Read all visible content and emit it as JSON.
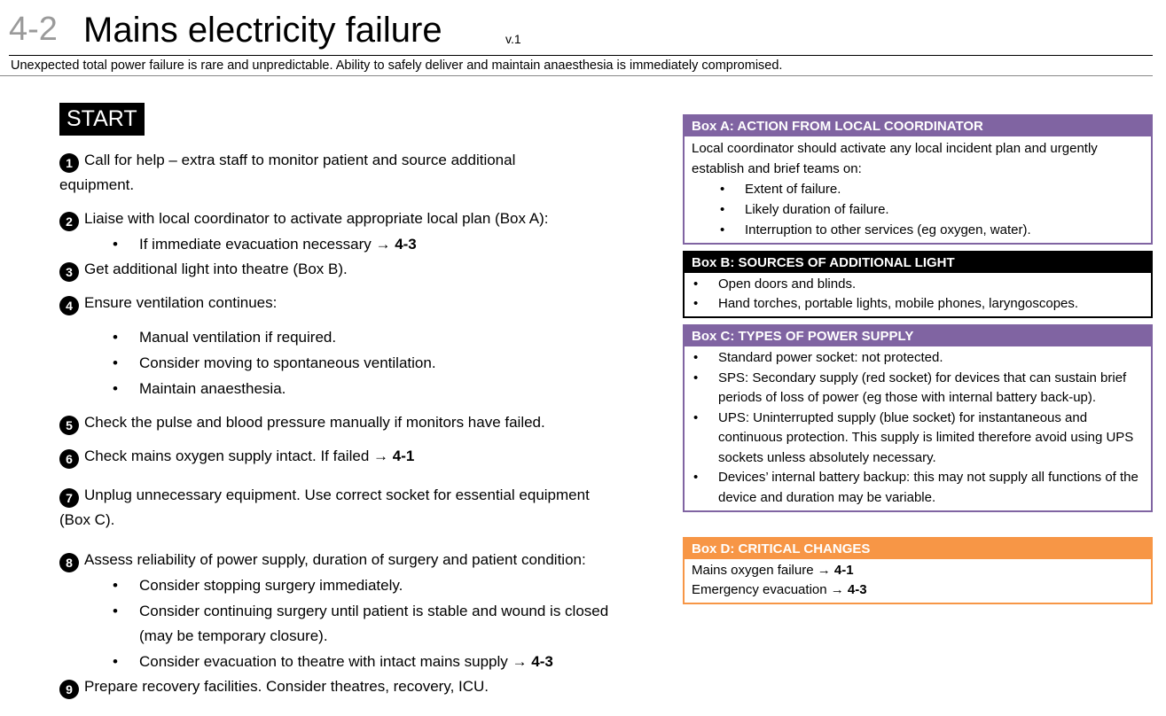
{
  "header": {
    "code": "4-2",
    "title": "Mains electricity failure",
    "version": "v.1",
    "subtitle": "Unexpected total power failure is rare and unpredictable. Ability to safely deliver and maintain anaesthesia is immediately compromised."
  },
  "start_label": "START",
  "steps": [
    {
      "num": "1",
      "text": "Call for help – extra staff to monitor patient and source additional",
      "text2": "equipment."
    },
    {
      "num": "2",
      "text": "Liaise with local coordinator to activate appropriate local plan (Box A):",
      "bullets": [
        {
          "text": "If immediate evacuation necessary → ",
          "ref": "4-3"
        }
      ]
    },
    {
      "num": "3",
      "text": "Get additional light into theatre (Box B)."
    },
    {
      "num": "4",
      "text": "Ensure ventilation continues:",
      "bullets": [
        "Manual ventilation if required.",
        "Consider moving to spontaneous ventilation.",
        "Maintain anaesthesia."
      ]
    },
    {
      "num": "5",
      "text": "Check the pulse and blood pressure manually if monitors have failed."
    },
    {
      "num": "6",
      "text": "Check mains oxygen supply intact. If failed → ",
      "ref": "4-1"
    },
    {
      "num": "7",
      "text": "Unplug unnecessary equipment. Use correct socket for essential equipment",
      "text2": "(Box C)."
    },
    {
      "num": "8",
      "text": "Assess reliability of power supply, duration of surgery and patient condition:",
      "bullets": [
        "Consider stopping surgery immediately.",
        "Consider continuing surgery until patient is stable and wound is closed (may be temporary closure).",
        {
          "text": "Consider evacuation to theatre with intact mains supply → ",
          "ref": "4-3"
        }
      ]
    },
    {
      "num": "9",
      "text": "Prepare recovery facilities. Consider theatres, recovery, ICU."
    }
  ],
  "boxes": {
    "a": {
      "title": "Box A: ACTION FROM LOCAL COORDINATOR",
      "intro": "Local coordinator should activate any local incident plan and urgently establish and brief teams on:",
      "items": [
        "Extent of failure.",
        "Likely duration of failure.",
        "Interruption to other services (eg oxygen, water)."
      ]
    },
    "b": {
      "title": "Box B: SOURCES OF ADDITIONAL LIGHT",
      "items": [
        "Open doors and blinds.",
        "Hand torches, portable lights, mobile phones, laryngoscopes."
      ]
    },
    "c": {
      "title": "Box C: TYPES OF POWER SUPPLY",
      "items": [
        "Standard power socket: not protected.",
        "SPS: Secondary supply (red socket) for devices that can sustain brief periods of loss of power (eg those with internal battery back-up).",
        "UPS: Uninterrupted supply (blue socket) for instantaneous and continuous protection.  This supply is limited therefore avoid using UPS sockets unless absolutely necessary.",
        "Devices’ internal battery backup: this may not supply all functions of the device and duration may be variable."
      ]
    },
    "d": {
      "title": "Box D: CRITICAL CHANGES",
      "lines": [
        {
          "text": "Mains oxygen failure → ",
          "ref": "4-1"
        },
        {
          "text": "Emergency evacuation → ",
          "ref": "4-3"
        }
      ]
    }
  },
  "colors": {
    "purple": "#8064a2",
    "orange": "#f79646",
    "black": "#000000"
  }
}
